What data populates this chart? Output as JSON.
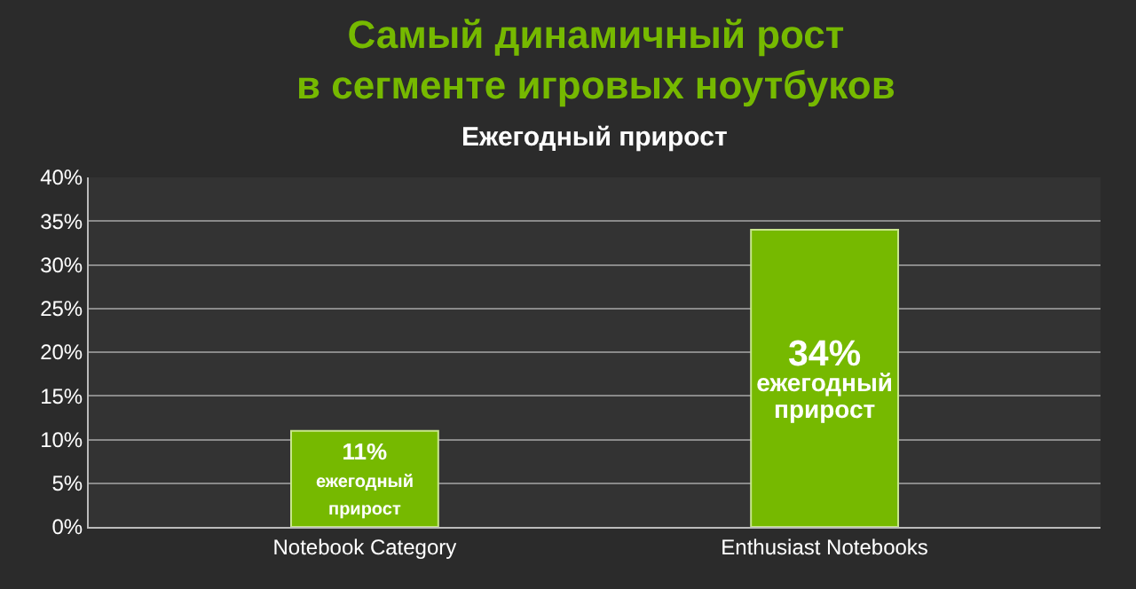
{
  "chart_data": {
    "type": "bar",
    "title": "Самый динамичный рост\nв сегменте игровых ноутбуков",
    "subtitle": "Ежегодный прирост",
    "categories": [
      "Notebook Category",
      "Enthusiast Notebooks"
    ],
    "values": [
      11,
      34
    ],
    "color": "#76b900",
    "value_labels": [
      "11%\nежегодный\nприрост",
      "34%\nежегодный\nприрост"
    ],
    "ylim": [
      0,
      40
    ],
    "yticks": [
      {
        "value": 0,
        "label": "0%"
      },
      {
        "value": 5,
        "label": "5%"
      },
      {
        "value": 10,
        "label": "10%"
      },
      {
        "value": 15,
        "label": "15%"
      },
      {
        "value": 20,
        "label": "20%"
      },
      {
        "value": 25,
        "label": "25%"
      },
      {
        "value": 30,
        "label": "30%"
      },
      {
        "value": 35,
        "label": "35%"
      },
      {
        "value": 40,
        "label": "40%"
      }
    ],
    "grid": "y"
  }
}
